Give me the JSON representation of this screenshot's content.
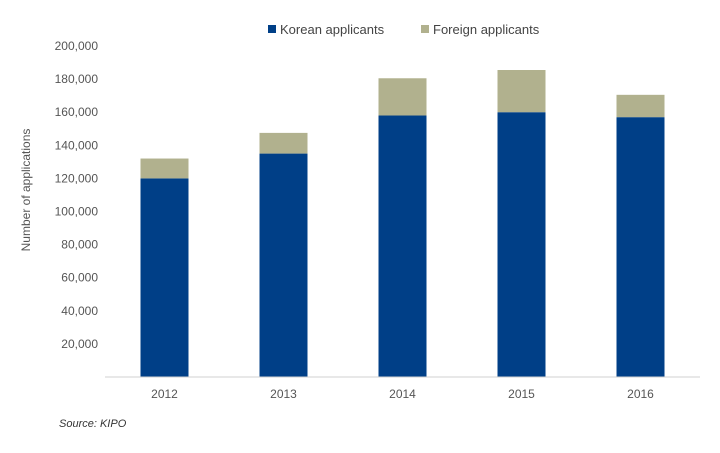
{
  "chart_data": {
    "type": "bar",
    "stacked": true,
    "categories": [
      "2012",
      "2013",
      "2014",
      "2015",
      "2016"
    ],
    "series": [
      {
        "name": "Korean applicants",
        "values": [
          120000,
          135000,
          158000,
          160000,
          157000
        ],
        "color": "#003f87"
      },
      {
        "name": "Foreign applicants",
        "values": [
          12000,
          12500,
          22500,
          25500,
          13500
        ],
        "color": "#b1b18e"
      }
    ],
    "ylabel": "Number of  applications",
    "xlabel": "",
    "ylim": [
      0,
      200000
    ],
    "yticks": [
      "20,000",
      "40,000",
      "60,000",
      "80,000",
      "100,000",
      "120,000",
      "140,000",
      "160,000",
      "180,000",
      "200,000"
    ],
    "ytick_values": [
      20000,
      40000,
      60000,
      80000,
      100000,
      120000,
      140000,
      160000,
      180000,
      200000
    ],
    "grid": false,
    "legend_position": "top"
  },
  "source_note": "Source: KIPO"
}
